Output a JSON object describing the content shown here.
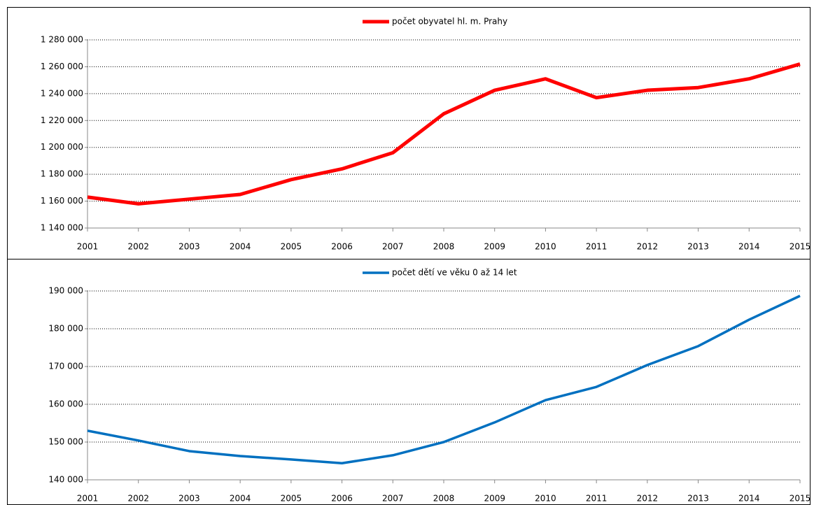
{
  "chart_data": [
    {
      "type": "line",
      "categories": [
        "2001",
        "2002",
        "2003",
        "2004",
        "2005",
        "2006",
        "2007",
        "2008",
        "2009",
        "2010",
        "2011",
        "2012",
        "2013",
        "2014",
        "2015"
      ],
      "series": [
        {
          "name": "počet obyvatel  hl. m. Prahy",
          "color": "#ff0000",
          "values": [
            1163000,
            1158000,
            1161500,
            1165000,
            1176000,
            1184000,
            1196000,
            1225000,
            1242500,
            1251000,
            1237000,
            1242500,
            1244500,
            1251000,
            1262000
          ]
        }
      ],
      "ylim": [
        1140000,
        1280000
      ],
      "yticks": [
        {
          "value": 1140000,
          "label": "1 140 000"
        },
        {
          "value": 1160000,
          "label": "1 160 000"
        },
        {
          "value": 1180000,
          "label": "1 180 000"
        },
        {
          "value": 1200000,
          "label": "1 200 000"
        },
        {
          "value": 1220000,
          "label": "1 220 000"
        },
        {
          "value": 1240000,
          "label": "1 240 000"
        },
        {
          "value": 1260000,
          "label": "1 260 000"
        },
        {
          "value": 1280000,
          "label": "1 280 000"
        }
      ],
      "grid": true,
      "legend": "top"
    },
    {
      "type": "line",
      "categories": [
        "2001",
        "2002",
        "2003",
        "2004",
        "2005",
        "2006",
        "2007",
        "2008",
        "2009",
        "2010",
        "2011",
        "2012",
        "2013",
        "2014",
        "2015"
      ],
      "series": [
        {
          "name": "počet dětí ve věku 0 až 14 let",
          "color": "#0070c0",
          "values": [
            153000,
            150400,
            147600,
            146300,
            145400,
            144400,
            146500,
            150000,
            155200,
            161100,
            164600,
            170400,
            175400,
            182400,
            188700
          ]
        }
      ],
      "ylim": [
        140000,
        190000
      ],
      "yticks": [
        {
          "value": 140000,
          "label": "140 000"
        },
        {
          "value": 150000,
          "label": "150 000"
        },
        {
          "value": 160000,
          "label": "160 000"
        },
        {
          "value": 170000,
          "label": "170 000"
        },
        {
          "value": 180000,
          "label": "180 000"
        },
        {
          "value": 190000,
          "label": "190 000"
        }
      ],
      "grid": true,
      "legend": "top"
    }
  ]
}
